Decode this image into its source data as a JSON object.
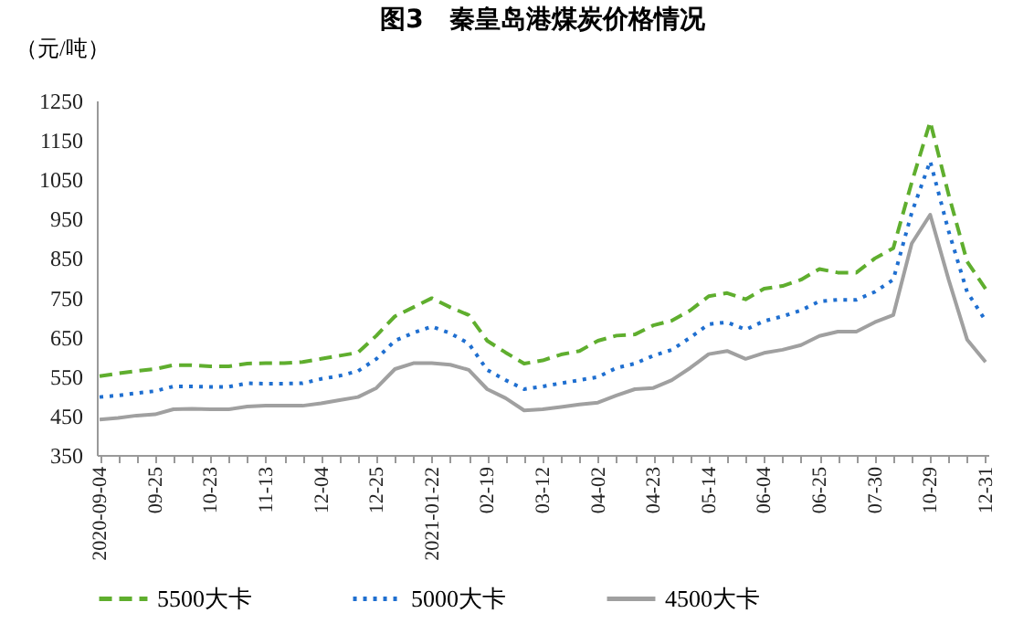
{
  "chart_data": {
    "type": "line",
    "title": "图3　秦皇岛港煤炭价格情况",
    "ylabel": "（元/吨）",
    "categories": [
      "2020-09-04",
      null,
      null,
      "09-25",
      null,
      null,
      "10-23",
      null,
      null,
      "11-13",
      null,
      null,
      "12-04",
      null,
      null,
      "12-25",
      null,
      null,
      "2021-01-22",
      null,
      null,
      "02-19",
      null,
      null,
      "03-12",
      null,
      null,
      "04-02",
      null,
      null,
      "04-23",
      null,
      null,
      "05-14",
      null,
      null,
      "06-04",
      null,
      null,
      "06-25",
      null,
      null,
      "07-30",
      null,
      null,
      "10-29",
      null,
      null,
      "12-31"
    ],
    "series": [
      {
        "name": "5500大卡",
        "color": "#5fae2e",
        "line_style": "dashed",
        "values": [
          550,
          557,
          563,
          568,
          578,
          578,
          575,
          575,
          582,
          583,
          583,
          586,
          594,
          602,
          610,
          653,
          702,
          725,
          748,
          725,
          705,
          640,
          610,
          582,
          590,
          605,
          614,
          640,
          653,
          656,
          679,
          691,
          717,
          753,
          761,
          745,
          772,
          779,
          795,
          822,
          813,
          813,
          849,
          875,
          1042,
          1196,
          1011,
          841,
          772
        ]
      },
      {
        "name": "5000大卡",
        "color": "#1f6fd0",
        "line_style": "dotted",
        "values": [
          497,
          501,
          507,
          512,
          524,
          524,
          523,
          523,
          532,
          531,
          531,
          532,
          543,
          551,
          563,
          594,
          640,
          660,
          676,
          659,
          633,
          566,
          540,
          517,
          524,
          532,
          540,
          548,
          571,
          582,
          602,
          617,
          648,
          682,
          687,
          668,
          690,
          702,
          717,
          740,
          744,
          744,
          764,
          795,
          965,
          1096,
          918,
          764,
          691
        ]
      },
      {
        "name": "4500大卡",
        "color": "#a0a0a0",
        "line_style": "solid",
        "values": [
          440,
          444,
          450,
          453,
          466,
          467,
          466,
          466,
          473,
          475,
          475,
          475,
          481,
          489,
          497,
          520,
          568,
          583,
          583,
          579,
          566,
          517,
          494,
          463,
          466,
          472,
          478,
          483,
          501,
          517,
          520,
          540,
          571,
          606,
          614,
          594,
          609,
          617,
          629,
          652,
          663,
          663,
          687,
          705,
          887,
          960,
          795,
          643,
          586
        ]
      }
    ],
    "ylim": [
      350,
      1250
    ],
    "yticks": [
      350,
      450,
      550,
      650,
      750,
      850,
      950,
      1050,
      1150,
      1250
    ],
    "grid": false,
    "legend": "bottom",
    "marker": "none"
  }
}
